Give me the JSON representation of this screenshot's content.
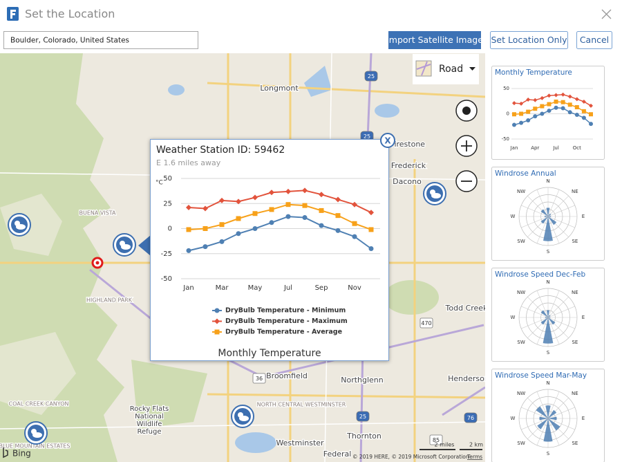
{
  "header": {
    "title": "Set the Location"
  },
  "search": {
    "value": "Boulder, Colorado, United States"
  },
  "buttons": {
    "import": "Import Satellite Image",
    "set_location": "Set Location Only",
    "cancel": "Cancel"
  },
  "map": {
    "style": "Road",
    "labels": [
      "Longmont",
      "Firestone",
      "Frederick",
      "Dacono",
      "BUENA VISTA",
      "HIGHLAND PARK",
      "Todd Creek",
      "Broomfield",
      "Northglenn",
      "Henderson",
      "COAL CREEK CANYON",
      "Rocky Flats",
      "National",
      "Wildlife",
      "Refuge",
      "NORTH CENTRAL WESTMINSTER",
      "Westminster",
      "Thornton",
      "BLUE MOUNTAIN ESTATES",
      "Federal"
    ],
    "road_shields": [
      "25",
      "25",
      "470",
      "36",
      "25",
      "76",
      "85"
    ],
    "scale": [
      "2 miles",
      "2 km"
    ],
    "copyright": "© 2019 HERE, © 2019 Microsoft Corporation",
    "terms": "Terms",
    "brand": "Bing"
  },
  "popup": {
    "title": "Weather Station ID: 59462",
    "distance": "E 1.6 miles away",
    "close": "X"
  },
  "chart_data": {
    "type": "line",
    "title": "Monthly Temperature",
    "y_label": "°C",
    "categories": [
      "Jan",
      null,
      "Mar",
      null,
      "May",
      null,
      "Jul",
      null,
      "Sep",
      null,
      "Nov",
      null
    ],
    "ylim": [
      -50,
      50
    ],
    "yticks": [
      -50,
      -25,
      0,
      25,
      50
    ],
    "grid": true,
    "series": [
      {
        "name": "DryBulb Temperature - Minimum",
        "color": "#4f80b3",
        "marker": "circle",
        "values": [
          -22,
          -18,
          -13,
          -5,
          0,
          6,
          12,
          11,
          3,
          -2,
          -8,
          -20
        ]
      },
      {
        "name": "DryBulb Temperature - Maximum",
        "color": "#e2533c",
        "marker": "diamond",
        "values": [
          21,
          20,
          28,
          27,
          31,
          36,
          37,
          38,
          34,
          29,
          24,
          16
        ]
      },
      {
        "name": "DryBulb Temperature - Average",
        "color": "#f7a11a",
        "marker": "square",
        "values": [
          -1,
          0,
          4,
          10,
          15,
          19,
          24,
          23,
          18,
          13,
          5,
          -1
        ]
      }
    ]
  },
  "sidebar": {
    "thumbnail": {
      "title": "Monthly Temperature",
      "categories": [
        "Jan",
        null,
        null,
        "Apr",
        null,
        null,
        "Jul",
        null,
        null,
        "Oct",
        null,
        null
      ],
      "ylim": [
        -50,
        50
      ],
      "yticks": [
        -50,
        0,
        50
      ]
    },
    "windroses": [
      {
        "title": "Windrose Annual",
        "directions": [
          "N",
          "NE",
          "E",
          "SE",
          "S",
          "SW",
          "W",
          "NW"
        ],
        "values": [
          0.3,
          0.12,
          0.1,
          0.35,
          0.85,
          0.3,
          0.12,
          0.3
        ]
      },
      {
        "title": "Windrose Speed Dec-Feb",
        "directions": [
          "N",
          "NE",
          "E",
          "SE",
          "S",
          "SW",
          "W",
          "NW"
        ],
        "values": [
          0.25,
          0.1,
          0.08,
          0.3,
          0.9,
          0.3,
          0.1,
          0.3
        ]
      },
      {
        "title": "Windrose Speed Mar-May",
        "directions": [
          "N",
          "NE",
          "E",
          "SE",
          "S",
          "SW",
          "W",
          "NW"
        ],
        "values": [
          0.45,
          0.35,
          0.3,
          0.5,
          0.8,
          0.45,
          0.3,
          0.5
        ]
      }
    ]
  }
}
